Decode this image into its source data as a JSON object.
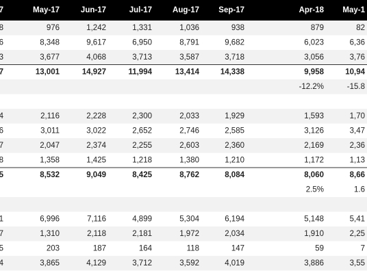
{
  "table": {
    "header": [
      "7",
      "May-17",
      "Jun-17",
      "Jul-17",
      "Aug-17",
      "Sep-17",
      "Apr-18",
      "May-1"
    ],
    "rows": [
      [
        "8",
        "976",
        "1,242",
        "1,331",
        "1,036",
        "938",
        "879",
        "82"
      ],
      [
        "6",
        "8,348",
        "9,617",
        "6,950",
        "8,791",
        "9,682",
        "6,023",
        "6,36"
      ],
      [
        "3",
        "3,677",
        "4,068",
        "3,713",
        "3,587",
        "3,718",
        "3,056",
        "3,76"
      ],
      [
        "7",
        "13,001",
        "14,927",
        "11,994",
        "13,414",
        "14,338",
        "9,958",
        "10,94"
      ],
      [
        null,
        null,
        null,
        null,
        null,
        null,
        "-12.2%",
        "-15.8"
      ],
      [
        null,
        null,
        null,
        null,
        null,
        null,
        null,
        null
      ],
      [
        "4",
        "2,116",
        "2,228",
        "2,300",
        "2,033",
        "1,929",
        "1,593",
        "1,70"
      ],
      [
        "6",
        "3,011",
        "3,022",
        "2,652",
        "2,746",
        "2,585",
        "3,126",
        "3,47"
      ],
      [
        "7",
        "2,047",
        "2,374",
        "2,255",
        "2,603",
        "2,360",
        "2,169",
        "2,36"
      ],
      [
        "8",
        "1,358",
        "1,425",
        "1,218",
        "1,380",
        "1,210",
        "1,172",
        "1,13"
      ],
      [
        "5",
        "8,532",
        "9,049",
        "8,425",
        "8,762",
        "8,084",
        "8,060",
        "8,66"
      ],
      [
        null,
        null,
        null,
        null,
        null,
        null,
        "2.5%",
        "1.6"
      ],
      [
        null,
        null,
        null,
        null,
        null,
        null,
        null,
        null
      ],
      [
        "1",
        "6,996",
        "7,116",
        "4,899",
        "5,304",
        "6,194",
        "5,148",
        "5,41"
      ],
      [
        "7",
        "1,310",
        "2,118",
        "2,181",
        "1,972",
        "2,034",
        "1,910",
        "2,25"
      ],
      [
        "5",
        "203",
        "187",
        "164",
        "118",
        "147",
        "59",
        "7"
      ],
      [
        "4",
        "3,865",
        "4,129",
        "3,712",
        "3,592",
        "4,019",
        "3,886",
        "3,55"
      ]
    ]
  }
}
